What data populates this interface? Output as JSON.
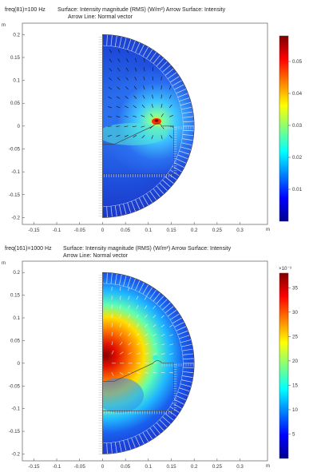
{
  "chart_data": [
    {
      "type": "heatmap",
      "freq_label": "freq(81)=100 Hz",
      "title_line1": "Surface: Intensity magnitude (RMS) (W/m²)  Arrow Surface: Intensity",
      "title_line2": "Arrow Line: Normal vector",
      "x_unit": "m",
      "y_unit": "m",
      "xlim": [
        -0.175,
        0.36
      ],
      "ylim": [
        -0.215,
        0.225
      ],
      "x_ticks": [
        -0.15,
        -0.1,
        -0.05,
        0,
        0.05,
        0.1,
        0.15,
        0.2,
        0.25,
        0.3
      ],
      "x_tick_labels": [
        "-0.15",
        "-0.1",
        "-0.05",
        "0",
        "0.05",
        "0.1",
        "0.15",
        "0.2",
        "0.25",
        "0.3"
      ],
      "y_ticks": [
        0.2,
        0.15,
        0.1,
        0.05,
        0,
        -0.05,
        -0.1,
        -0.15,
        -0.2
      ],
      "y_tick_labels": [
        "0.2",
        "0.15",
        "0.1",
        "0.05",
        "0",
        "-0.05",
        "-0.1",
        "-0.15",
        "-0.2"
      ],
      "colorbar": {
        "min": 0.0,
        "max": 0.058,
        "ticks": [
          0.01,
          0.02,
          0.03,
          0.04,
          0.05
        ],
        "tick_labels": [
          "0.01",
          "0.02",
          "0.03",
          "0.04",
          "0.05"
        ],
        "exponent": ""
      },
      "domain_outer_radius_m": 0.2,
      "hot_spot": {
        "x": 0.12,
        "y": 0.008,
        "value": 0.058
      }
    },
    {
      "type": "heatmap",
      "freq_label": "freq(161)=1000 Hz",
      "title_line1": "Surface: Intensity magnitude (RMS) (W/m²)  Arrow Surface: Intensity",
      "title_line2": "Arrow Line: Normal vector",
      "x_unit": "m",
      "y_unit": "m",
      "xlim": [
        -0.175,
        0.36
      ],
      "ylim": [
        -0.215,
        0.225
      ],
      "x_ticks": [
        -0.15,
        -0.1,
        -0.05,
        0,
        0.05,
        0.1,
        0.15,
        0.2,
        0.25,
        0.3
      ],
      "x_tick_labels": [
        "-0.15",
        "-0.1",
        "-0.05",
        "0",
        "0.05",
        "0.1",
        "0.15",
        "0.2",
        "0.25",
        "0.3"
      ],
      "y_ticks": [
        0.2,
        0.15,
        0.1,
        0.05,
        0,
        -0.05,
        -0.1,
        -0.15,
        -0.2
      ],
      "y_tick_labels": [
        "0.2",
        "0.15",
        "0.1",
        "0.05",
        "0",
        "-0.05",
        "-0.1",
        "-0.15",
        "-0.2"
      ],
      "colorbar": {
        "min": 0.0,
        "max": 38,
        "ticks": [
          5,
          10,
          15,
          20,
          25,
          30,
          35
        ],
        "tick_labels": [
          "5",
          "10",
          "15",
          "20",
          "25",
          "30",
          "35"
        ],
        "exponent": "×10⁻³"
      },
      "domain_outer_radius_m": 0.2,
      "hot_spot": {
        "x": 0.01,
        "y": 0.0,
        "value": 0.038
      }
    }
  ]
}
